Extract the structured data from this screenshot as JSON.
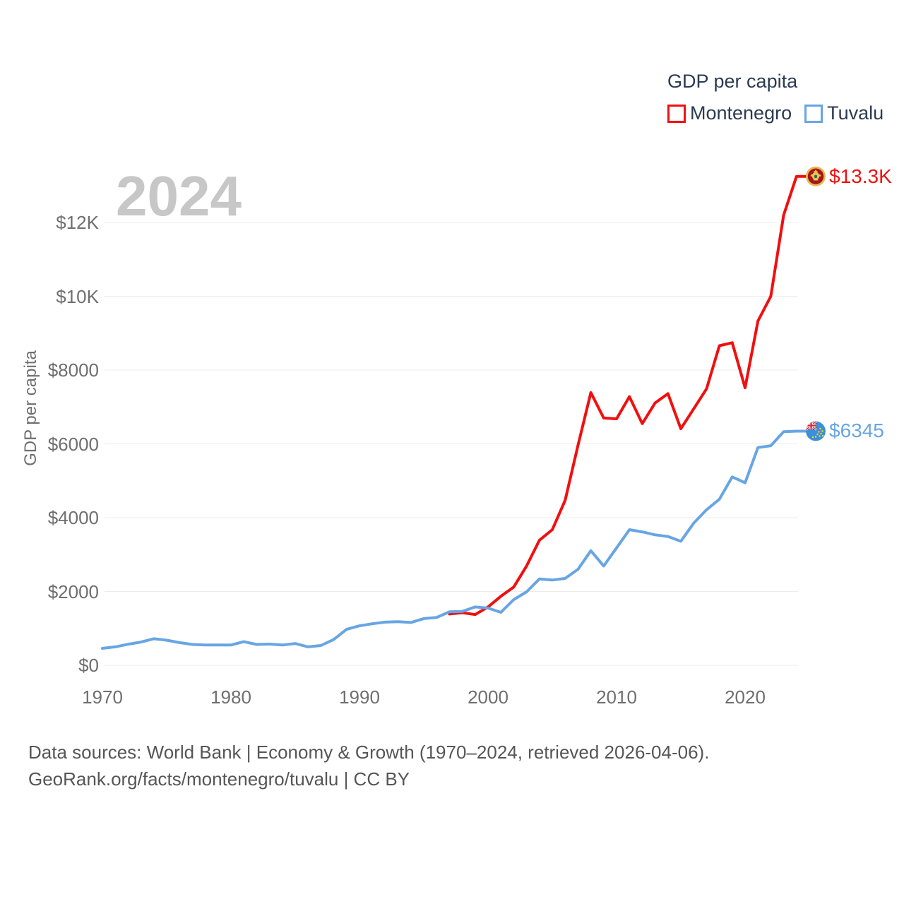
{
  "watermark": "2024",
  "legend": {
    "title": "GDP per capita",
    "items": [
      {
        "label": "Montenegro"
      },
      {
        "label": "Tuvalu"
      }
    ]
  },
  "footer": {
    "line1": "Data sources: World Bank | Economy & Growth (1970–2024, retrieved 2026-04-06).",
    "line2": "GeoRank.org/facts/montenegro/tuvalu | CC BY"
  },
  "chart_data": {
    "type": "line",
    "title": "GDP per capita",
    "xlabel": "",
    "ylabel": "GDP per capita",
    "xlim": [
      1970,
      2024
    ],
    "ylim": [
      0,
      13300
    ],
    "grid": true,
    "legend_position": "top-right",
    "xticks": [
      1970,
      1980,
      1990,
      2000,
      2010,
      2020
    ],
    "yticks": [
      {
        "value": 0,
        "label": "$0"
      },
      {
        "value": 2000,
        "label": "$2000"
      },
      {
        "value": 4000,
        "label": "$4000"
      },
      {
        "value": 6000,
        "label": "$6000"
      },
      {
        "value": 8000,
        "label": "$8000"
      },
      {
        "value": 10000,
        "label": "$10K"
      },
      {
        "value": 12000,
        "label": "$12K"
      }
    ],
    "series": [
      {
        "name": "Montenegro",
        "color": "#f10f0f",
        "end_label": "$13.3K",
        "end_value": 13250,
        "start_year": 1997,
        "values": [
          1390,
          1425,
          1375,
          1580,
          1870,
          2120,
          2690,
          3390,
          3675,
          4470,
          5960,
          7390,
          6700,
          6680,
          7280,
          6550,
          7110,
          7360,
          6410,
          6950,
          7490,
          8660,
          8740,
          7520,
          9330,
          10000,
          12200,
          13250
        ]
      },
      {
        "name": "Tuvalu",
        "color": "#68a5e3",
        "end_label": "$6345",
        "end_value": 6345,
        "start_year": 1970,
        "values": [
          460,
          500,
          570,
          630,
          720,
          680,
          615,
          565,
          550,
          550,
          550,
          640,
          565,
          575,
          550,
          590,
          500,
          535,
          700,
          975,
          1070,
          1125,
          1170,
          1180,
          1160,
          1265,
          1295,
          1450,
          1460,
          1580,
          1550,
          1435,
          1780,
          1990,
          2340,
          2310,
          2355,
          2600,
          3105,
          2690,
          3180,
          3675,
          3615,
          3535,
          3490,
          3360,
          3850,
          4215,
          4500,
          5105,
          4945,
          5900,
          5950,
          6330,
          6345
        ]
      }
    ]
  }
}
